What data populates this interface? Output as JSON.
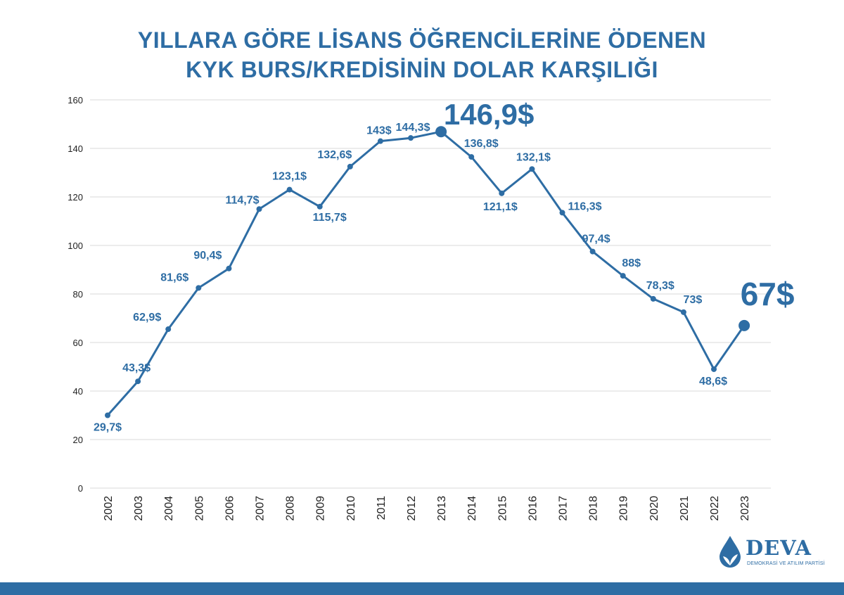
{
  "title": {
    "line1": "YILLARA GÖRE LİSANS ÖĞRENCİLERİNE ÖDENEN",
    "line2": "KYK BURS/KREDİSİNİN DOLAR KARŞILIĞI"
  },
  "colors": {
    "accent": "#2e6da4",
    "grid": "#d9d9d9",
    "axis_text": "#222222"
  },
  "chart_data": {
    "type": "line",
    "title": "YILLARA GÖRE LİSANS ÖĞRENCİLERİNE ÖDENEN KYK BURS/KREDİSİNİN DOLAR KARŞILIĞI",
    "xlabel": "",
    "ylabel": "",
    "ylim": [
      0,
      160
    ],
    "yticks": [
      0,
      20,
      40,
      60,
      80,
      100,
      120,
      140,
      160
    ],
    "grid": true,
    "categories": [
      "2002",
      "2003",
      "2004",
      "2005",
      "2006",
      "2007",
      "2008",
      "2009",
      "2010",
      "2011",
      "2012",
      "2013",
      "2014",
      "2015",
      "2016",
      "2017",
      "2018",
      "2019",
      "2020",
      "2021",
      "2022",
      "2023"
    ],
    "values": [
      29.7,
      43.3,
      62.9,
      81.6,
      90.4,
      114.7,
      123.1,
      115.7,
      132.6,
      143,
      144.3,
      146.9,
      136.8,
      121.1,
      132.1,
      116.3,
      97.4,
      88,
      78.3,
      73,
      48.6,
      67
    ],
    "plotted_values": [
      30,
      44,
      65.5,
      82.5,
      90.5,
      115,
      123,
      116,
      132.5,
      143,
      144.3,
      146.9,
      136.5,
      121.5,
      131.5,
      113.5,
      97.5,
      87.5,
      78,
      72.5,
      49,
      67
    ],
    "labels": [
      "29,7$",
      "43,3$",
      "62,9$",
      "81,6$",
      "90,4$",
      "114,7$",
      "123,1$",
      "115,7$",
      "132,6$",
      "143$",
      "144,3$",
      "146,9$",
      "136,8$",
      "121,1$",
      "132,1$",
      "116,3$",
      "97,4$",
      "88$",
      "78,3$",
      "73$",
      "48,6$",
      "67$"
    ],
    "highlight": [
      11,
      21
    ]
  },
  "logo": {
    "name": "DEVA",
    "subtitle": "DEMOKRASİ VE ATILIM PARTİSİ"
  }
}
